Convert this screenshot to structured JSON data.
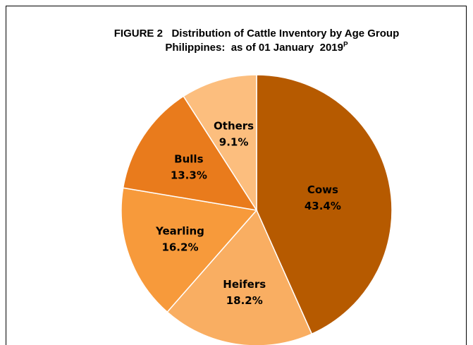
{
  "chart_data": {
    "type": "pie",
    "title": "FIGURE 2   Distribution of Cattle Inventory by Age Group",
    "subtitle": "Philippines:  as of 01 January  2019",
    "subtitle_superscript": "P",
    "categories": [
      "Cows",
      "Heifers",
      "Yearling",
      "Bulls",
      "Others"
    ],
    "values": [
      43.4,
      18.2,
      16.2,
      13.3,
      9.1
    ],
    "value_labels": [
      "43.4%",
      "18.2%",
      "16.2%",
      "13.3%",
      "9.1%"
    ],
    "colors": [
      "#b65a00",
      "#f9ae62",
      "#f79a3b",
      "#e97b1c",
      "#fcbe7e"
    ]
  }
}
